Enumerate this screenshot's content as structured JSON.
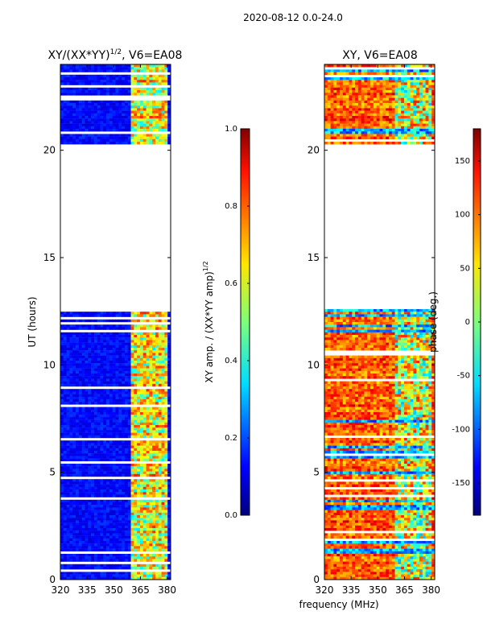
{
  "figure": {
    "suptitle": "2020-08-12 0.0-24.0",
    "xlabel": "frequency (MHz)"
  },
  "chart_data": [
    {
      "type": "heatmap",
      "title": "XY/(XX*YY)^{1/2}, V6=EA08",
      "title_main": "XY/(XX*YY)",
      "title_sup": "1/2",
      "title_tail": ", V6=EA08",
      "ylabel": "UT (hours)",
      "xlim": [
        320,
        382
      ],
      "ylim": [
        0,
        24
      ],
      "xticks": [
        320,
        335,
        350,
        365,
        380
      ],
      "yticks": [
        0,
        5,
        10,
        15,
        20
      ],
      "colorbar": {
        "label_main": "XY amp. / (XX*YY amp)",
        "label_sup": "1/2",
        "label": "XY amp. / (XX*YY amp)^{1/2}",
        "ticks": [
          "0.0",
          "0.2",
          "0.4",
          "0.6",
          "0.8",
          "1.0"
        ],
        "range": [
          0,
          1
        ],
        "colormap": "jet"
      },
      "no_data_hours": [
        12.6,
        20.3
      ],
      "rfi_band_mhz": [
        360,
        380
      ]
    },
    {
      "type": "heatmap",
      "title": "XY, V6=EA08",
      "xlim": [
        320,
        382
      ],
      "ylim": [
        0,
        24
      ],
      "xticks": [
        320,
        335,
        350,
        365,
        380
      ],
      "yticks": [
        0,
        5,
        10,
        15,
        20
      ],
      "colorbar": {
        "label": "phase (deg.)",
        "ticks": [
          "-150",
          "-100",
          "-50",
          "0",
          "50",
          "100",
          "150"
        ],
        "tick_values": [
          -150,
          -100,
          -50,
          0,
          50,
          100,
          150
        ],
        "range": [
          -180,
          180
        ],
        "colormap": "jet"
      },
      "no_data_hours": [
        12.6,
        20.3
      ],
      "rfi_band_mhz": [
        360,
        380
      ]
    }
  ]
}
